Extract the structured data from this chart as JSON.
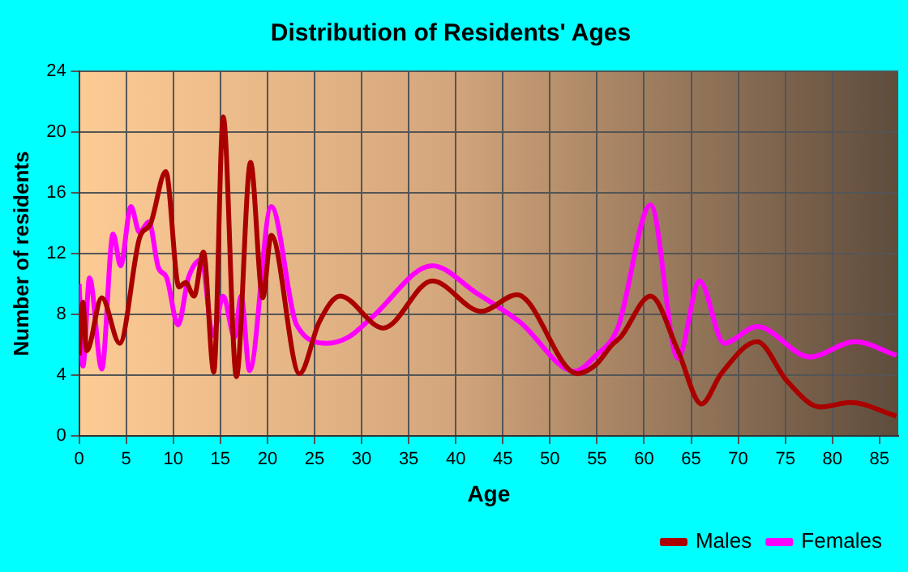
{
  "chart_data": {
    "type": "line",
    "title": "Distribution of Residents' Ages",
    "xlabel": "Age",
    "ylabel": "Number of residents",
    "xlim": [
      0,
      87
    ],
    "xticks": [
      0,
      5,
      10,
      15,
      20,
      25,
      30,
      35,
      40,
      45,
      50,
      55,
      60,
      65,
      70,
      75,
      80,
      85
    ],
    "ylim": [
      0,
      24
    ],
    "yticks": [
      0,
      4,
      8,
      12,
      16,
      20,
      24
    ],
    "grid": true,
    "legend": "bottom right",
    "marker": "none",
    "line_style": "solid",
    "series": [
      {
        "name": "Males",
        "color": "#aa0000",
        "x": [
          0,
          0.4,
          0.8,
          2.4,
          4.3,
          6.4,
          7.6,
          9.2,
          10.6,
          11.3,
          12.2,
          13.2,
          14.3,
          15.3,
          16.7,
          18.2,
          19.5,
          20.4,
          23.4,
          25.5,
          27.7,
          32.3,
          37.5,
          42.7,
          46.5,
          52.9,
          54.9,
          56.6,
          57.5,
          60.7,
          63.6,
          66.1,
          68.2,
          72,
          75.2,
          78.7,
          81.9,
          86.8
        ],
        "values": [
          5.3,
          8.8,
          5.6,
          9.1,
          6.1,
          13,
          14,
          17.4,
          9.8,
          10.1,
          9.2,
          12.1,
          4.2,
          21,
          3.9,
          18,
          9.1,
          13.2,
          4.1,
          7.5,
          9.2,
          7.1,
          10.2,
          8.2,
          9.3,
          4.1,
          4.7,
          6,
          6.5,
          9.2,
          5.6,
          2.1,
          4.1,
          6.2,
          3.6,
          1.9,
          2.2,
          1.3
        ]
      },
      {
        "name": "Females",
        "color": "#ff00ff",
        "x": [
          0,
          0.4,
          1.1,
          2.4,
          3.6,
          4.4,
          5.5,
          6.4,
          7.4,
          8.4,
          9.3,
          10.5,
          11.6,
          13,
          14.2,
          15.3,
          16.5,
          17.2,
          18.1,
          20.4,
          23.1,
          26.3,
          28.6,
          31.1,
          37.5,
          42.2,
          46.8,
          52.6,
          54.9,
          57.2,
          60.7,
          63.6,
          65.9,
          68.5,
          72,
          77.6,
          82.4,
          86.8
        ],
        "values": [
          10,
          4.6,
          10.4,
          4.4,
          13.3,
          11.2,
          15.1,
          13.4,
          14.1,
          11.1,
          10.4,
          7.3,
          10.4,
          11.6,
          6.6,
          9.2,
          6.5,
          9.2,
          4.3,
          15.1,
          7.3,
          6.1,
          6.5,
          7.8,
          11.2,
          9.4,
          7.5,
          4.25,
          5.3,
          7.1,
          15.2,
          5.1,
          10.2,
          6.1,
          7.2,
          5.2,
          6.2,
          5.3
        ]
      }
    ]
  }
}
